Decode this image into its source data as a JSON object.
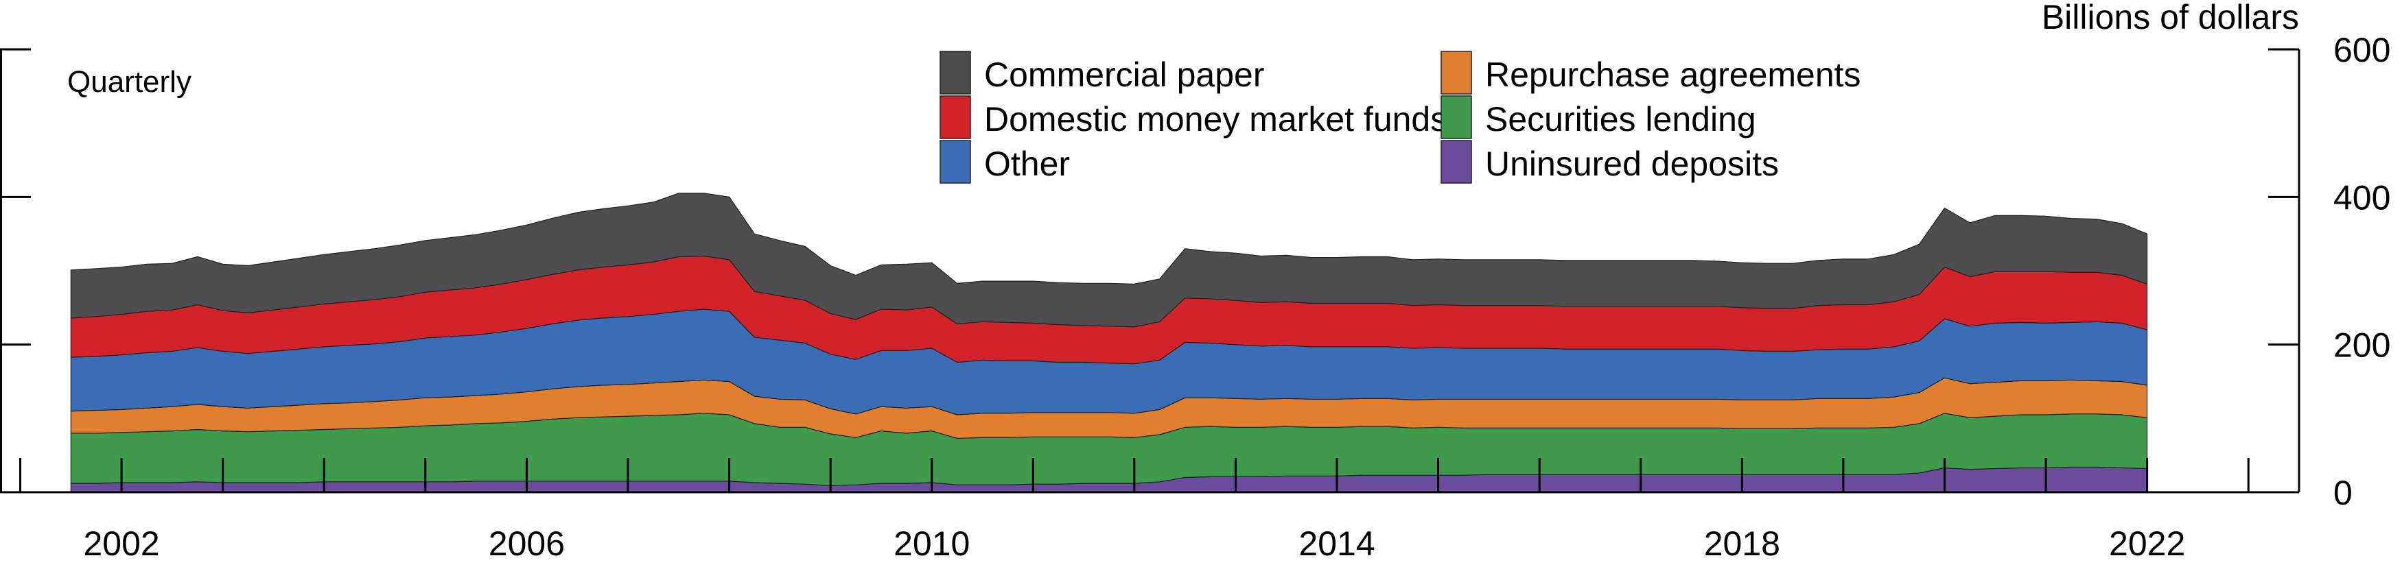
{
  "chart_data": {
    "type": "area",
    "stacked": true,
    "frequency_label": "Quarterly",
    "unit_label": "Billions of dollars",
    "ylim": [
      0,
      600
    ],
    "yticks": [
      0,
      200,
      400,
      600
    ],
    "xtick_labels": [
      "2002",
      "2006",
      "2010",
      "2014",
      "2018",
      "2022"
    ],
    "xtick_years": [
      2002,
      2006,
      2010,
      2014,
      2018,
      2022
    ],
    "xlim": [
      2000.8,
      2023.5
    ],
    "grid": false,
    "legend_placement": "top-center",
    "x": [
      2001.5,
      2001.75,
      2002.0,
      2002.25,
      2002.5,
      2002.75,
      2003.0,
      2003.25,
      2003.5,
      2003.75,
      2004.0,
      2004.25,
      2004.5,
      2004.75,
      2005.0,
      2005.25,
      2005.5,
      2005.75,
      2006.0,
      2006.25,
      2006.5,
      2006.75,
      2007.0,
      2007.25,
      2007.5,
      2007.75,
      2008.0,
      2008.25,
      2008.5,
      2008.75,
      2009.0,
      2009.25,
      2009.5,
      2009.75,
      2010.0,
      2010.25,
      2010.5,
      2010.75,
      2011.0,
      2011.25,
      2011.5,
      2011.75,
      2012.0,
      2012.25,
      2012.5,
      2012.75,
      2013.0,
      2013.25,
      2013.5,
      2013.75,
      2014.0,
      2014.25,
      2014.5,
      2014.75,
      2015.0,
      2015.25,
      2015.5,
      2015.75,
      2016.0,
      2016.25,
      2016.5,
      2016.75,
      2017.0,
      2017.25,
      2017.5,
      2017.75,
      2018.0,
      2018.25,
      2018.5,
      2018.75,
      2019.0,
      2019.25,
      2019.5,
      2019.75,
      2020.0,
      2020.25,
      2020.5,
      2020.75,
      2021.0,
      2021.25,
      2021.5,
      2021.75,
      2022.0
    ],
    "series": [
      {
        "name": "Uninsured deposits",
        "color": "#6a4c9c",
        "values": [
          12,
          12,
          13,
          13,
          13,
          14,
          13,
          13,
          13,
          13,
          14,
          14,
          14,
          14,
          14,
          14,
          15,
          15,
          15,
          15,
          15,
          15,
          15,
          15,
          15,
          15,
          15,
          13,
          12,
          11,
          9,
          10,
          12,
          12,
          13,
          10,
          10,
          10,
          11,
          11,
          12,
          12,
          12,
          14,
          20,
          21,
          21,
          21,
          22,
          22,
          22,
          23,
          23,
          23,
          23,
          23,
          24,
          24,
          24,
          24,
          24,
          24,
          24,
          24,
          24,
          24,
          24,
          24,
          24,
          24,
          24,
          24,
          24,
          26,
          33,
          31,
          32,
          33,
          33,
          34,
          34,
          33,
          32
        ]
      },
      {
        "name": "Securities lending",
        "color": "#3f9a4c",
        "values": [
          68,
          68,
          68,
          69,
          70,
          71,
          70,
          69,
          70,
          71,
          71,
          72,
          73,
          74,
          76,
          77,
          78,
          79,
          81,
          84,
          86,
          87,
          88,
          89,
          90,
          92,
          90,
          80,
          76,
          77,
          70,
          64,
          71,
          68,
          70,
          63,
          64,
          64,
          64,
          64,
          63,
          63,
          62,
          64,
          68,
          68,
          67,
          67,
          67,
          66,
          66,
          66,
          66,
          64,
          65,
          64,
          63,
          63,
          63,
          63,
          63,
          63,
          63,
          63,
          63,
          63,
          62,
          62,
          62,
          63,
          63,
          63,
          64,
          67,
          74,
          70,
          71,
          72,
          72,
          72,
          72,
          72,
          69
        ]
      },
      {
        "name": "Repurchase agreements",
        "color": "#e07f2f",
        "values": [
          30,
          31,
          31,
          32,
          33,
          34,
          33,
          32,
          33,
          34,
          35,
          35,
          36,
          37,
          38,
          38,
          38,
          39,
          40,
          41,
          42,
          43,
          43,
          44,
          45,
          45,
          45,
          37,
          38,
          37,
          34,
          32,
          33,
          34,
          33,
          32,
          33,
          33,
          33,
          33,
          33,
          33,
          33,
          34,
          40,
          39,
          39,
          38,
          38,
          38,
          38,
          38,
          38,
          38,
          38,
          39,
          39,
          39,
          39,
          39,
          39,
          39,
          39,
          39,
          39,
          39,
          39,
          39,
          39,
          40,
          40,
          40,
          41,
          42,
          48,
          46,
          46,
          46,
          46,
          46,
          45,
          45,
          44
        ]
      },
      {
        "name": "Other",
        "color": "#3a6db6",
        "values": [
          73,
          73,
          74,
          75,
          75,
          77,
          75,
          74,
          75,
          76,
          77,
          78,
          78,
          79,
          81,
          82,
          82,
          84,
          86,
          88,
          90,
          91,
          92,
          93,
          95,
          96,
          95,
          80,
          80,
          77,
          74,
          74,
          76,
          78,
          79,
          71,
          72,
          71,
          70,
          68,
          68,
          67,
          67,
          67,
          75,
          74,
          73,
          72,
          72,
          71,
          71,
          70,
          70,
          70,
          70,
          69,
          69,
          69,
          69,
          68,
          68,
          68,
          68,
          68,
          68,
          68,
          67,
          66,
          66,
          66,
          67,
          67,
          68,
          70,
          80,
          78,
          80,
          79,
          78,
          78,
          80,
          79,
          75
        ]
      },
      {
        "name": "Domestic money market funds",
        "color": "#d2232a",
        "values": [
          53,
          54,
          55,
          56,
          56,
          58,
          55,
          55,
          56,
          57,
          58,
          59,
          60,
          61,
          62,
          63,
          64,
          65,
          66,
          67,
          68,
          69,
          70,
          71,
          74,
          72,
          70,
          62,
          60,
          58,
          55,
          54,
          56,
          55,
          56,
          52,
          52,
          52,
          51,
          51,
          50,
          50,
          50,
          52,
          60,
          60,
          60,
          59,
          59,
          59,
          59,
          59,
          59,
          58,
          58,
          58,
          58,
          58,
          58,
          58,
          58,
          58,
          58,
          58,
          58,
          58,
          58,
          58,
          58,
          60,
          60,
          60,
          61,
          63,
          70,
          67,
          70,
          69,
          70,
          68,
          67,
          65,
          62
        ]
      },
      {
        "name": "Commercial paper",
        "color": "#4d4d4f",
        "values": [
          65,
          65,
          64,
          64,
          63,
          65,
          63,
          64,
          65,
          66,
          67,
          68,
          69,
          70,
          70,
          71,
          72,
          73,
          74,
          76,
          78,
          79,
          80,
          81,
          86,
          85,
          85,
          78,
          75,
          73,
          65,
          60,
          60,
          62,
          60,
          55,
          55,
          56,
          57,
          57,
          57,
          58,
          58,
          58,
          67,
          64,
          64,
          63,
          63,
          62,
          62,
          63,
          63,
          62,
          62,
          62,
          62,
          62,
          62,
          62,
          62,
          62,
          62,
          62,
          62,
          61,
          61,
          61,
          61,
          61,
          62,
          62,
          64,
          68,
          80,
          73,
          76,
          76,
          75,
          73,
          72,
          70,
          68
        ]
      }
    ]
  }
}
